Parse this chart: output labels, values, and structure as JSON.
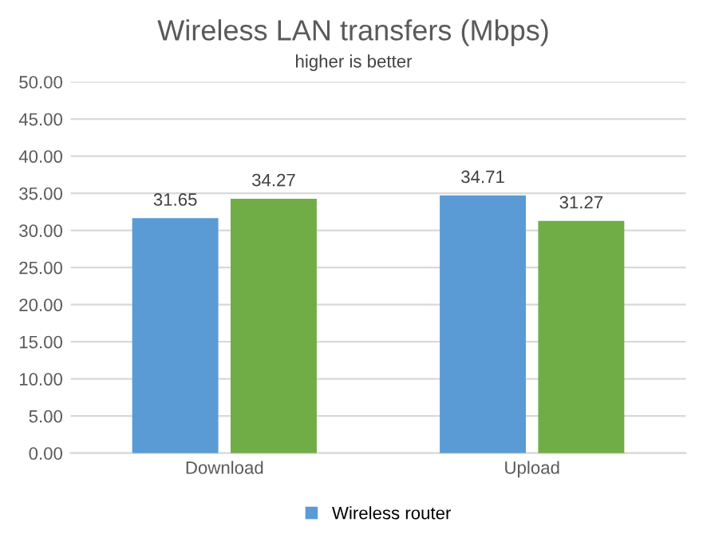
{
  "chart_data": {
    "type": "bar",
    "title": "Wireless LAN transfers (Mbps)",
    "subtitle": "higher is better",
    "categories": [
      "Download",
      "Upload"
    ],
    "series": [
      {
        "name": "Wireless router",
        "color": "#5b9bd5",
        "values": [
          31.65,
          34.71
        ]
      },
      {
        "color": "#70ad47",
        "values": [
          34.27,
          31.27
        ]
      }
    ],
    "ylim": [
      0,
      50
    ],
    "yticks": [
      {
        "value": 0,
        "label": "0.00"
      },
      {
        "value": 5,
        "label": "5.00"
      },
      {
        "value": 10,
        "label": "10.00"
      },
      {
        "value": 15,
        "label": "15.00"
      },
      {
        "value": 20,
        "label": "20.00"
      },
      {
        "value": 25,
        "label": "25.00"
      },
      {
        "value": 30,
        "label": "30.00"
      },
      {
        "value": 35,
        "label": "35.00"
      },
      {
        "value": 40,
        "label": "40.00"
      },
      {
        "value": 45,
        "label": "45.00"
      },
      {
        "value": 50,
        "label": "50.00"
      }
    ],
    "grid": "y",
    "legend": "bottom",
    "data_labels": true
  }
}
